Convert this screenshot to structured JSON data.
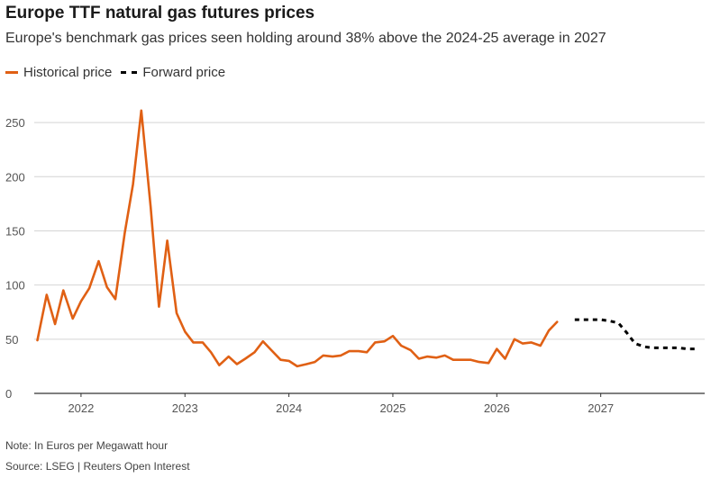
{
  "chart_data": {
    "type": "line",
    "title": "Europe TTF natural gas futures prices",
    "subtitle": "Europe's benchmark gas prices seen holding around 38% above the 2024-25 average in 2027",
    "ylim": [
      0,
      270
    ],
    "xlim": [
      2021.55,
      2028.0
    ],
    "yticks": [
      0,
      50,
      100,
      150,
      200,
      250
    ],
    "xticks": [
      {
        "label": "2022",
        "x": 2022.0
      },
      {
        "label": "2023",
        "x": 2023.0
      },
      {
        "label": "2024",
        "x": 2024.0
      },
      {
        "label": "2025",
        "x": 2025.0
      },
      {
        "label": "2026",
        "x": 2026.0
      },
      {
        "label": "2027",
        "x": 2027.0
      }
    ],
    "grid": true,
    "legend_position": "top-left",
    "series": [
      {
        "name": "Historical price",
        "color": "#e06014",
        "style": "solid",
        "x": [
          2021.58,
          2021.67,
          2021.75,
          2021.83,
          2021.92,
          2022.0,
          2022.08,
          2022.17,
          2022.25,
          2022.33,
          2022.42,
          2022.5,
          2022.58,
          2022.67,
          2022.75,
          2022.83,
          2022.92,
          2023.0,
          2023.08,
          2023.17,
          2023.25,
          2023.33,
          2023.42,
          2023.5,
          2023.58,
          2023.67,
          2023.75,
          2023.83,
          2023.92,
          2024.0,
          2024.08,
          2024.17,
          2024.25,
          2024.33,
          2024.42,
          2024.5,
          2024.58,
          2024.67,
          2024.75,
          2024.83,
          2024.92,
          2025.0,
          2025.08,
          2025.17,
          2025.25,
          2025.33,
          2025.42,
          2025.5,
          2025.58,
          2025.67,
          2025.75,
          2025.83,
          2025.92,
          2026.0,
          2026.08,
          2026.17,
          2026.25,
          2026.33,
          2026.42,
          2026.5,
          2026.58
        ],
        "values": [
          49,
          91,
          64,
          95,
          69,
          85,
          97,
          122,
          98,
          87,
          148,
          193,
          261,
          172,
          80,
          141,
          74,
          57,
          47,
          47,
          38,
          26,
          34,
          27,
          32,
          38,
          48,
          40,
          31,
          30,
          25,
          27,
          29,
          35,
          34,
          35,
          39,
          39,
          38,
          47,
          48,
          53,
          44,
          40,
          32,
          34,
          33,
          35,
          31,
          31,
          31,
          29,
          28,
          41,
          32,
          50,
          46,
          47,
          44,
          58,
          66
        ]
      },
      {
        "name": "Forward price",
        "color": "#000000",
        "style": "dashed",
        "x": [
          2026.75,
          2026.92,
          2027.0,
          2027.08,
          2027.17,
          2027.25,
          2027.33,
          2027.42,
          2027.5,
          2027.58,
          2027.67,
          2027.75,
          2027.83,
          2027.92
        ],
        "values": [
          68,
          68,
          68,
          67,
          65,
          56,
          46,
          43,
          42,
          42,
          42,
          42,
          41,
          41
        ]
      }
    ]
  },
  "note": "Note: In Euros per Megawatt hour",
  "source": "Source: LSEG | Reuters Open Interest"
}
